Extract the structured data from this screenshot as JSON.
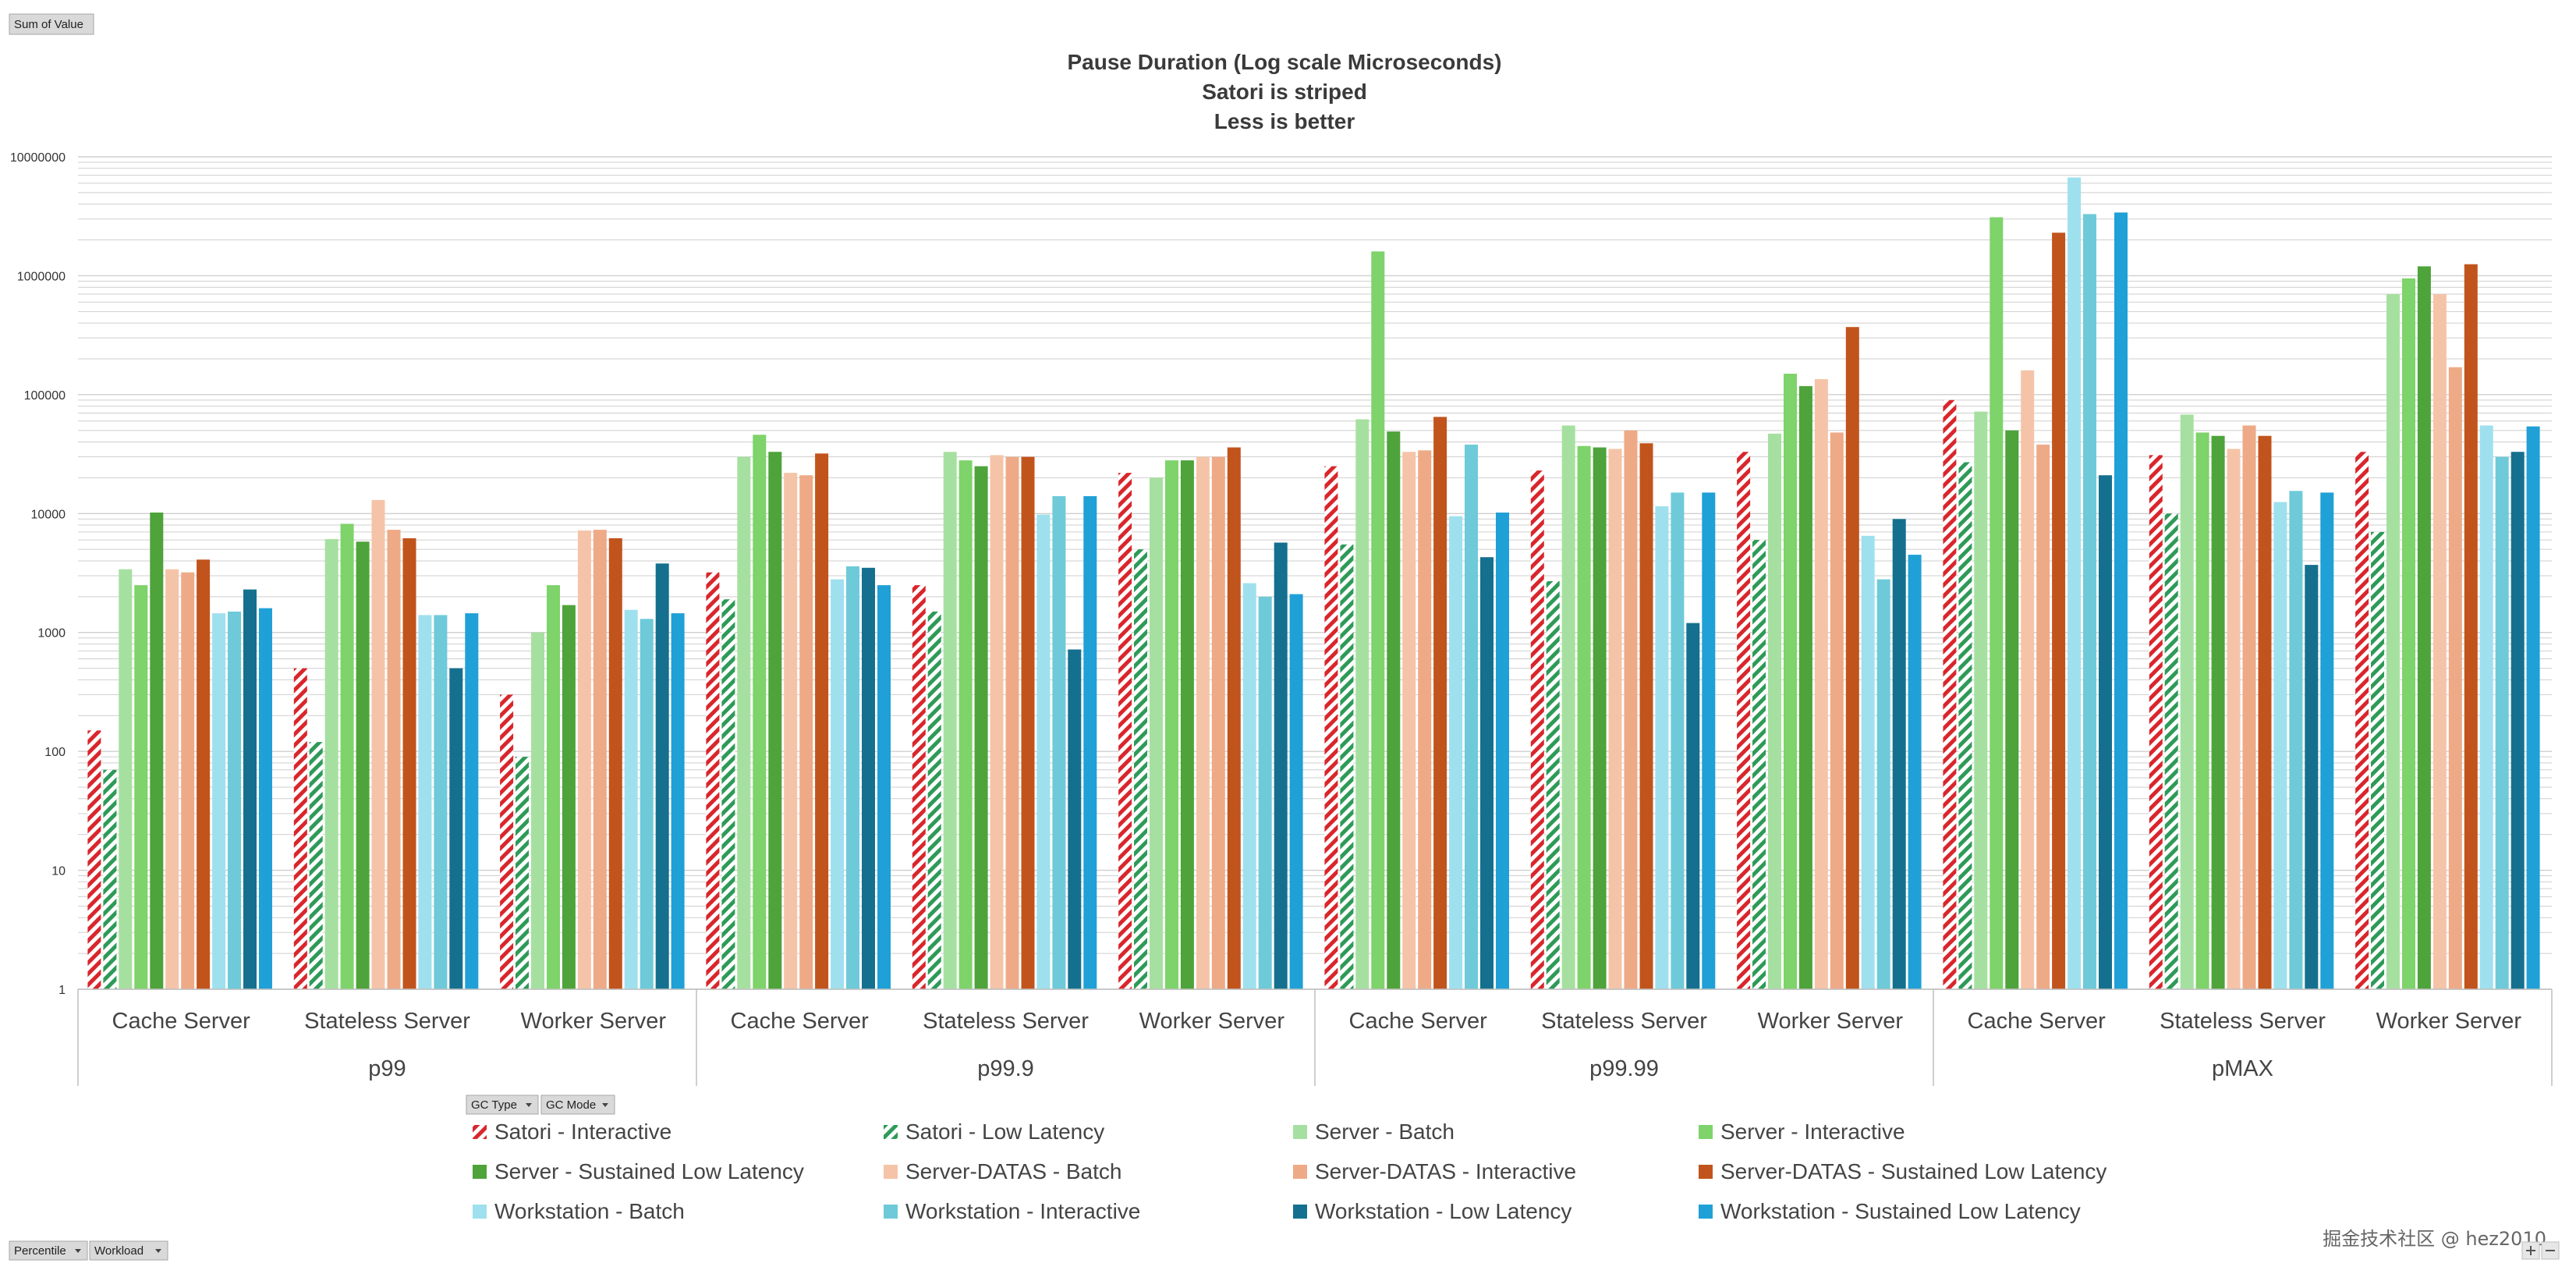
{
  "pivot": {
    "value_field_label": "Sum of Value",
    "series_fields": [
      "GC Type",
      "GC Mode"
    ],
    "axis_fields": [
      "Percentile",
      "Workload"
    ]
  },
  "colors": {
    "satori_interactive": "#d9262c",
    "satori_low_latency": "#2e9a58",
    "server_batch": "#a6e0a0",
    "server_interactive": "#7ed36a",
    "server_sustained_low_latency": "#4ea33a",
    "server_datas_batch": "#f5c4a8",
    "server_datas_interactive": "#eeaa86",
    "server_datas_sustained_low_latency": "#c1541c",
    "workstation_batch": "#9fe0ee",
    "workstation_interactive": "#6ecad8",
    "workstation_low_latency": "#14708e",
    "workstation_sustained_low_latency": "#1fa0d6",
    "gridline": "#cfcfcf",
    "axis": "#bfbfbf"
  },
  "watermark": "掘金技术社区 @ hez2010",
  "chart_data": {
    "type": "bar",
    "title_lines": [
      "Pause Duration (Log scale Microseconds)",
      "Satori is striped",
      "Less is better"
    ],
    "y_scale": "log",
    "ylim": [
      1,
      10000000
    ],
    "y_ticks": [
      "1",
      "10",
      "100",
      "1000",
      "10000",
      "100000",
      "1000000",
      "10000000"
    ],
    "gridlines": true,
    "legend_position": "bottom",
    "groups": [
      {
        "name": "p99",
        "categories": [
          "Cache Server",
          "Stateless Server",
          "Worker Server"
        ]
      },
      {
        "name": "p99.9",
        "categories": [
          "Cache Server",
          "Stateless Server",
          "Worker Server"
        ]
      },
      {
        "name": "p99.99",
        "categories": [
          "Cache Server",
          "Stateless Server",
          "Worker Server"
        ]
      },
      {
        "name": "pMAX",
        "categories": [
          "Cache Server",
          "Stateless Server",
          "Worker Server"
        ]
      }
    ],
    "series": [
      {
        "name": "Satori - Interactive",
        "color_key": "satori_interactive",
        "striped": true,
        "values": [
          150,
          500,
          300,
          3200,
          2500,
          22000,
          25000,
          23000,
          33000,
          90000,
          31000,
          33000
        ]
      },
      {
        "name": "Satori - Low Latency",
        "color_key": "satori_low_latency",
        "striped": true,
        "values": [
          70,
          120,
          90,
          1900,
          1500,
          5000,
          5500,
          2700,
          6000,
          27000,
          10000,
          7000
        ]
      },
      {
        "name": "Server - Batch",
        "color_key": "server_batch",
        "striped": false,
        "values": [
          3400,
          6100,
          1000,
          30000,
          33000,
          20000,
          62000,
          55000,
          47000,
          72000,
          68000,
          700000
        ]
      },
      {
        "name": "Server - Interactive",
        "color_key": "server_interactive",
        "striped": false,
        "values": [
          2500,
          8200,
          2500,
          46000,
          28000,
          28000,
          1600000,
          37000,
          150000,
          3100000,
          48000,
          950000
        ]
      },
      {
        "name": "Server - Sustained Low Latency",
        "color_key": "server_sustained_low_latency",
        "striped": false,
        "values": [
          10200,
          5800,
          1700,
          33000,
          25000,
          28000,
          49000,
          36000,
          118000,
          50000,
          45000,
          1200000
        ]
      },
      {
        "name": "Server-DATAS - Batch",
        "color_key": "server_datas_batch",
        "striped": false,
        "values": [
          3400,
          13000,
          7200,
          22000,
          31000,
          30000,
          33000,
          35000,
          135000,
          160000,
          35000,
          700000
        ]
      },
      {
        "name": "Server-DATAS - Interactive",
        "color_key": "server_datas_interactive",
        "striped": false,
        "values": [
          3200,
          7300,
          7300,
          21000,
          30000,
          30000,
          34000,
          50000,
          48000,
          38000,
          55000,
          170000
        ]
      },
      {
        "name": "Server-DATAS - Sustained Low Latency",
        "color_key": "server_datas_sustained_low_latency",
        "striped": false,
        "values": [
          4100,
          6200,
          6200,
          32000,
          30000,
          36000,
          65000,
          39000,
          370000,
          2300000,
          45000,
          1250000
        ]
      },
      {
        "name": "Workstation - Batch",
        "color_key": "workstation_batch",
        "striped": false,
        "values": [
          1450,
          1400,
          1550,
          2800,
          9800,
          2600,
          9500,
          11500,
          6500,
          6700000,
          12500,
          55000
        ]
      },
      {
        "name": "Workstation - Interactive",
        "color_key": "workstation_interactive",
        "striped": false,
        "values": [
          1500,
          1400,
          1300,
          3600,
          14000,
          2000,
          38000,
          15000,
          2800,
          3300000,
          15500,
          30000
        ]
      },
      {
        "name": "Workstation - Low Latency",
        "color_key": "workstation_low_latency",
        "striped": false,
        "values": [
          2300,
          500,
          3800,
          3500,
          720,
          5700,
          4300,
          1200,
          9000,
          21000,
          3700,
          33000
        ]
      },
      {
        "name": "Workstation - Sustained Low Latency",
        "color_key": "workstation_sustained_low_latency",
        "striped": false,
        "values": [
          1600,
          1450,
          1450,
          2500,
          14000,
          2100,
          10200,
          15000,
          4500,
          3400000,
          15000,
          54000
        ]
      }
    ]
  }
}
